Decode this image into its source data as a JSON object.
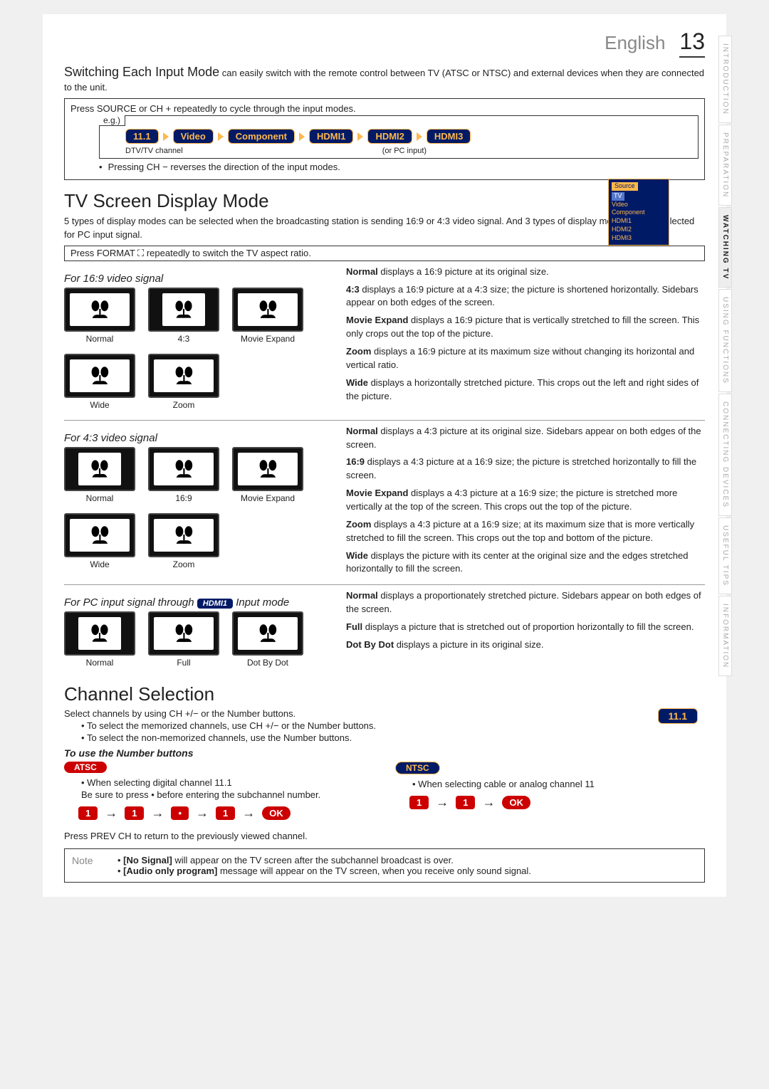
{
  "header": {
    "language": "English",
    "page_number": "13"
  },
  "side_tabs": [
    {
      "label": "INTRODUCTION",
      "active": false
    },
    {
      "label": "PREPARATION",
      "active": false
    },
    {
      "label": "WATCHING TV",
      "active": true
    },
    {
      "label": "USING FUNCTIONS",
      "active": false
    },
    {
      "label": "CONNECTING DEVICES",
      "active": false
    },
    {
      "label": "USEFUL TIPS",
      "active": false
    },
    {
      "label": "INFORMATION",
      "active": false
    }
  ],
  "switching": {
    "title": "Switching Each Input Mode",
    "desc": " can easily switch with the remote control between TV (ATSC or NTSC) and external devices when they are connected to the unit.",
    "press": "Press SOURCE or CH + repeatedly to cycle through the input modes.",
    "eg": "e.g.)",
    "inputs": [
      "11.1",
      "Video",
      "Component",
      "HDMI1",
      "HDMI2",
      "HDMI3"
    ],
    "sublabels_left": "DTV/TV channel",
    "sublabels_right": "(or PC input)",
    "reverse": "Pressing CH − reverses the direction of the input modes.",
    "source_menu": {
      "header": "Source",
      "items": [
        "TV",
        "Video",
        "Component",
        "HDMI1",
        "HDMI2",
        "HDMI3"
      ]
    }
  },
  "screen": {
    "title": "TV Screen Display Mode",
    "intro": "5 types of display modes can be selected when the broadcasting station is sending 16:9 or 4:3 video signal. And 3 types of display modes can be selected for PC input signal.",
    "press": "Press FORMAT ⛶ repeatedly to switch the TV aspect ratio.",
    "s169": {
      "heading": "For 16:9 video signal",
      "thumbs": [
        "Normal",
        "4:3",
        "Movie Expand",
        "Wide",
        "Zoom"
      ],
      "desc": [
        {
          "b": "Normal",
          "t": " displays a 16:9 picture at its original size."
        },
        {
          "b": "4:3",
          "t": " displays a 16:9 picture at a 4:3 size; the picture is shortened horizontally. Sidebars appear on both edges of the screen."
        },
        {
          "b": "Movie Expand",
          "t": " displays a 16:9 picture that is vertically stretched to fill the screen. This only crops out the top of the picture."
        },
        {
          "b": "Zoom",
          "t": " displays a 16:9 picture at its maximum size without changing its horizontal and vertical ratio."
        },
        {
          "b": "Wide",
          "t": " displays a horizontally stretched picture. This crops out the left and right sides of the picture."
        }
      ]
    },
    "s43": {
      "heading": "For 4:3 video signal",
      "thumbs": [
        "Normal",
        "16:9",
        "Movie Expand",
        "Wide",
        "Zoom"
      ],
      "desc": [
        {
          "b": "Normal",
          "t": " displays a 4:3 picture at its original size. Sidebars appear on both edges of the screen."
        },
        {
          "b": "16:9",
          "t": " displays a 4:3 picture at a 16:9 size; the picture is stretched horizontally to fill the screen."
        },
        {
          "b": "Movie Expand",
          "t": " displays a 4:3 picture at a 16:9 size; the picture is stretched more vertically at the top of the screen. This crops out the top of the picture."
        },
        {
          "b": "Zoom",
          "t": " displays a 4:3 picture at a 16:9 size; at its maximum size that is more vertically stretched to fill the screen. This crops out the top and bottom of the picture."
        },
        {
          "b": "Wide",
          "t": " displays the picture with its center at the original size and the edges stretched horizontally to fill the screen."
        }
      ]
    },
    "spc": {
      "heading_pre": "For PC input signal through ",
      "heading_chip": "HDMI1",
      "heading_post": " Input mode",
      "thumbs": [
        "Normal",
        "Full",
        "Dot By Dot"
      ],
      "desc": [
        {
          "b": "Normal",
          "t": " displays a proportionately stretched picture. Sidebars appear on both edges of the screen."
        },
        {
          "b": "Full",
          "t": " displays a picture that is stretched out of proportion horizontally to fill the screen."
        },
        {
          "b": "Dot By Dot",
          "t": " displays a picture in its original size."
        }
      ]
    }
  },
  "channel": {
    "title": "Channel Selection",
    "intro": "Select channels by using CH +/− or the Number buttons.",
    "bullets": [
      "To select the memorized channels, use CH +/− or the Number buttons.",
      "To select the non-memorized channels, use the Number buttons."
    ],
    "chip": "11.1",
    "sub": "To use the Number buttons",
    "atsc_label": "ATSC",
    "ntsc_label": "NTSC",
    "atsc_line1": "When selecting digital channel 11.1",
    "atsc_line2": "Be sure to press • before entering the subchannel number.",
    "ntsc_line": "When selecting cable or analog channel 11",
    "seq_atsc": [
      "1",
      "1",
      "•",
      "1",
      "OK"
    ],
    "seq_ntsc": [
      "1",
      "1",
      "OK"
    ],
    "prev": "Press PREV CH to return to the previously viewed channel.",
    "note_label": "Note",
    "note_items": [
      {
        "b": "[No Signal]",
        "t": " will appear on the TV screen after the subchannel broadcast is over."
      },
      {
        "b": "[Audio only program]",
        "t": " message will appear on the TV screen, when you receive only sound signal."
      }
    ]
  }
}
